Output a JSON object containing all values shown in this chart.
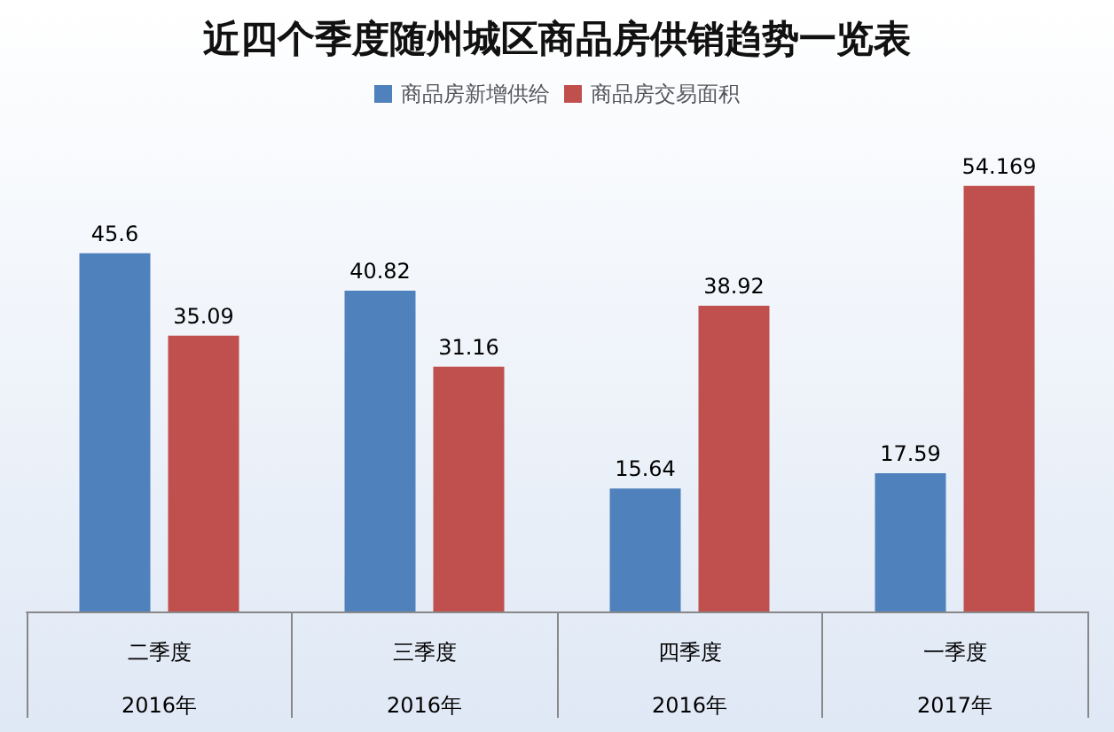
{
  "chart_data": {
    "type": "bar",
    "title": "近四个季度随州城区商品房供销趋势一览表",
    "categories": [
      "二季度\n2016年",
      "三季度\n2016年",
      "四季度\n2016年",
      "一季度\n2017年"
    ],
    "series": [
      {
        "name": "商品房新增供给",
        "color": "#4f81bd",
        "values": [
          45.6,
          40.82,
          15.64,
          17.59
        ]
      },
      {
        "name": "商品房交易面积",
        "color": "#c0504d",
        "values": [
          35.09,
          31.16,
          38.92,
          54.169
        ]
      }
    ],
    "data_labels": true,
    "legend": "top",
    "grid": false
  }
}
